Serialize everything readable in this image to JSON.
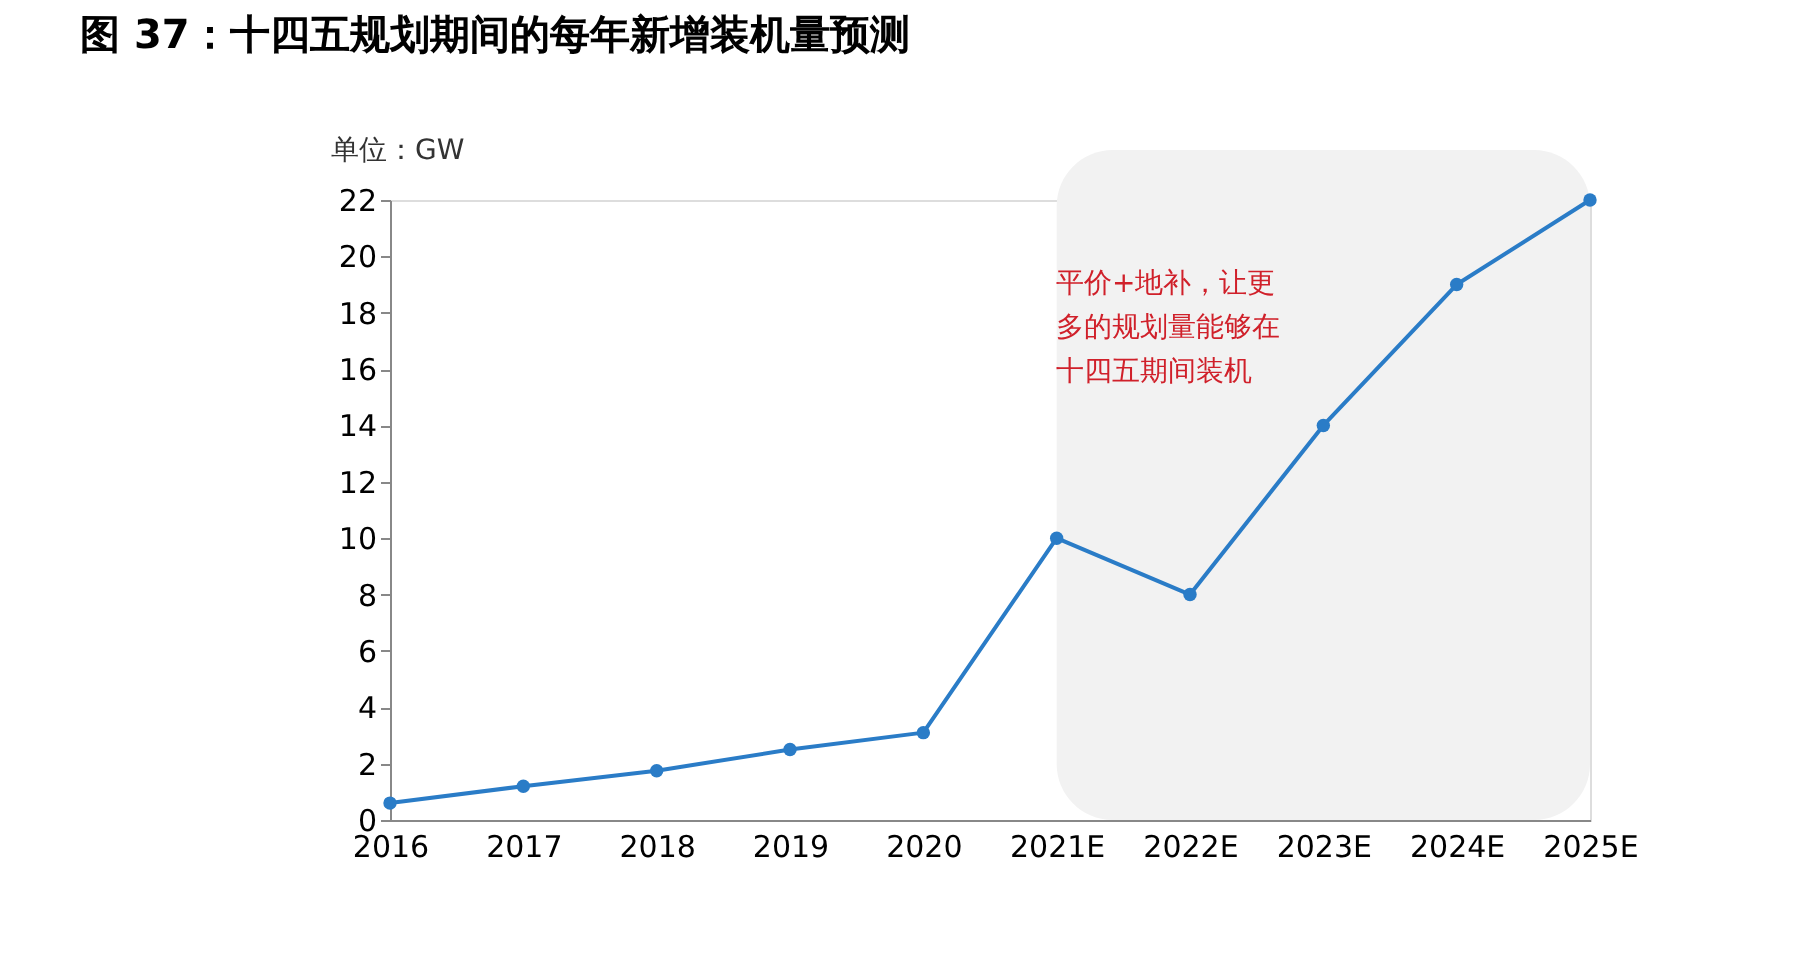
{
  "chart_data": {
    "type": "line",
    "title": "图 37：十四五规划期间的每年新增装机量预测",
    "ylabel": "单位：GW",
    "categories": [
      "2016",
      "2017",
      "2018",
      "2019",
      "2020",
      "2021E",
      "2022E",
      "2023E",
      "2024E",
      "2025E"
    ],
    "series": [
      {
        "color": "#2a7cc7",
        "values": [
          0.6,
          1.2,
          1.75,
          2.5,
          3.1,
          10,
          8,
          14,
          19,
          22
        ]
      }
    ],
    "ylim": [
      0,
      22
    ],
    "yticks": [
      0,
      2,
      4,
      6,
      8,
      10,
      12,
      14,
      16,
      18,
      20,
      22
    ],
    "bands": [
      {
        "axis": "x",
        "from": "2021E",
        "to": "2025E",
        "color": "#f2f2f2"
      }
    ],
    "annotations": [
      "平价+地补，让更多的规划量能够在十四五期间装机"
    ],
    "marker": "circle",
    "grid": false
  }
}
